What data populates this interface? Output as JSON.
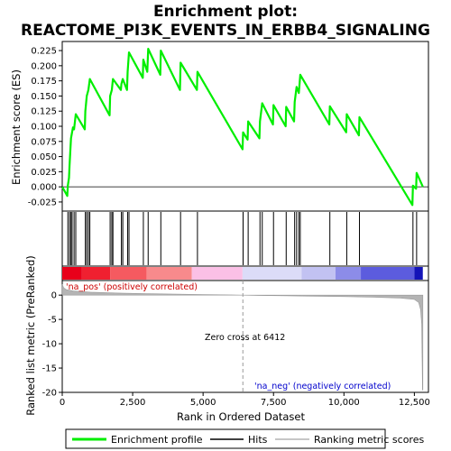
{
  "chart_data": {
    "type": "line",
    "title_line1": "Enrichment plot:",
    "title_line2": "REACTOME_PI3K_EVENTS_IN_ERBB4_SIGNALING",
    "xlabel": "Rank in Ordered Dataset",
    "ylabel_top": "Enrichment score (ES)",
    "ylabel_bottom": "Ranked list metric (PreRanked)",
    "xlim": [
      0,
      13000
    ],
    "x_ticks": [
      0,
      2500,
      5000,
      7500,
      10000,
      12500
    ],
    "x_tick_labels": [
      "0",
      "2,500",
      "5,000",
      "7,500",
      "10,000",
      "12,500"
    ],
    "es_ylim": [
      -0.04,
      0.24
    ],
    "es_ticks": [
      -0.025,
      0.0,
      0.025,
      0.05,
      0.075,
      0.1,
      0.125,
      0.15,
      0.175,
      0.2,
      0.225
    ],
    "es_tick_labels": [
      "-0.025",
      "0.000",
      "0.025",
      "0.050",
      "0.075",
      "0.100",
      "0.125",
      "0.150",
      "0.175",
      "0.200",
      "0.225"
    ],
    "metric_ylim": [
      -20,
      3
    ],
    "metric_ticks": [
      0,
      -5,
      -10,
      -15,
      -20
    ],
    "metric_tick_labels": [
      "0",
      "-5",
      "-10",
      "-15",
      "-20"
    ],
    "n_genes": 12800,
    "zero_cross": 6412,
    "zero_cross_label": "Zero cross at 6412",
    "pos_label": "'na_pos' (positively correlated)",
    "neg_label": "'na_neg' (negatively correlated)",
    "hits": [
      200,
      260,
      310,
      350,
      420,
      480,
      820,
      870,
      930,
      980,
      1700,
      1760,
      1800,
      2100,
      2150,
      2320,
      2370,
      2880,
      3050,
      3500,
      4200,
      4800,
      6420,
      6600,
      7020,
      7100,
      7500,
      7950,
      8250,
      8320,
      8400,
      8450,
      9500,
      10100,
      10550,
      12450,
      12580
    ],
    "es_profile": [
      [
        0,
        0.0
      ],
      [
        180,
        -0.015
      ],
      [
        200,
        0.002
      ],
      [
        240,
        0.015
      ],
      [
        260,
        0.035
      ],
      [
        310,
        0.08
      ],
      [
        350,
        0.09
      ],
      [
        380,
        0.098
      ],
      [
        420,
        0.095
      ],
      [
        480,
        0.12
      ],
      [
        800,
        0.095
      ],
      [
        820,
        0.125
      ],
      [
        870,
        0.15
      ],
      [
        930,
        0.16
      ],
      [
        980,
        0.178
      ],
      [
        1680,
        0.118
      ],
      [
        1700,
        0.15
      ],
      [
        1760,
        0.16
      ],
      [
        1800,
        0.178
      ],
      [
        2080,
        0.16
      ],
      [
        2100,
        0.17
      ],
      [
        2150,
        0.178
      ],
      [
        2300,
        0.16
      ],
      [
        2320,
        0.19
      ],
      [
        2370,
        0.222
      ],
      [
        2860,
        0.18
      ],
      [
        2880,
        0.21
      ],
      [
        3020,
        0.19
      ],
      [
        3050,
        0.228
      ],
      [
        3480,
        0.185
      ],
      [
        3500,
        0.225
      ],
      [
        4180,
        0.16
      ],
      [
        4200,
        0.205
      ],
      [
        4780,
        0.16
      ],
      [
        4800,
        0.19
      ],
      [
        6400,
        0.062
      ],
      [
        6420,
        0.09
      ],
      [
        6580,
        0.078
      ],
      [
        6600,
        0.108
      ],
      [
        7000,
        0.08
      ],
      [
        7020,
        0.108
      ],
      [
        7100,
        0.138
      ],
      [
        7480,
        0.103
      ],
      [
        7500,
        0.135
      ],
      [
        7930,
        0.1
      ],
      [
        7950,
        0.132
      ],
      [
        8230,
        0.108
      ],
      [
        8250,
        0.14
      ],
      [
        8320,
        0.165
      ],
      [
        8400,
        0.155
      ],
      [
        8450,
        0.185
      ],
      [
        9480,
        0.103
      ],
      [
        9500,
        0.133
      ],
      [
        10080,
        0.09
      ],
      [
        10100,
        0.12
      ],
      [
        10530,
        0.085
      ],
      [
        10550,
        0.115
      ],
      [
        12430,
        -0.03
      ],
      [
        12450,
        0.002
      ],
      [
        12560,
        -0.003
      ],
      [
        12580,
        0.023
      ],
      [
        12800,
        0.0
      ]
    ],
    "metric_profile": [
      [
        0,
        2.2
      ],
      [
        50,
        1.5
      ],
      [
        150,
        1.1
      ],
      [
        400,
        0.85
      ],
      [
        1000,
        0.6
      ],
      [
        2000,
        0.42
      ],
      [
        3000,
        0.3
      ],
      [
        4000,
        0.2
      ],
      [
        5000,
        0.12
      ],
      [
        6000,
        0.05
      ],
      [
        6412,
        0.0
      ],
      [
        7000,
        -0.08
      ],
      [
        8000,
        -0.16
      ],
      [
        9000,
        -0.22
      ],
      [
        10000,
        -0.3
      ],
      [
        11000,
        -0.42
      ],
      [
        12000,
        -0.6
      ],
      [
        12500,
        -0.9
      ],
      [
        12650,
        -1.5
      ],
      [
        12720,
        -3.0
      ],
      [
        12760,
        -6.0
      ],
      [
        12790,
        -19.5
      ],
      [
        12800,
        -19.5
      ]
    ],
    "band_segments": [
      {
        "from": 0,
        "to": 700,
        "color": "#e8001a"
      },
      {
        "from": 700,
        "to": 1700,
        "color": "#f02030"
      },
      {
        "from": 1700,
        "to": 3000,
        "color": "#f55a60"
      },
      {
        "from": 3000,
        "to": 4600,
        "color": "#f88a8c"
      },
      {
        "from": 4600,
        "to": 6400,
        "color": "#fbc0e6"
      },
      {
        "from": 6400,
        "to": 8500,
        "color": "#dcdcf8"
      },
      {
        "from": 8500,
        "to": 9700,
        "color": "#c2c2f2"
      },
      {
        "from": 9700,
        "to": 10600,
        "color": "#8c8ce8"
      },
      {
        "from": 10600,
        "to": 12500,
        "color": "#5c5cde"
      },
      {
        "from": 12500,
        "to": 12800,
        "color": "#1414b8"
      }
    ],
    "colors": {
      "es_line": "#00ee00",
      "hit": "#000000",
      "zero_line": "#999999",
      "metric_fill": "#b4b4b4",
      "pos_text": "#cc0000",
      "neg_text": "#0000cc"
    },
    "legend": [
      {
        "label": "Enrichment profile",
        "marker": "green-line"
      },
      {
        "label": "Hits",
        "marker": "black-line"
      },
      {
        "label": "Ranking metric scores",
        "marker": "gray-line"
      }
    ]
  }
}
